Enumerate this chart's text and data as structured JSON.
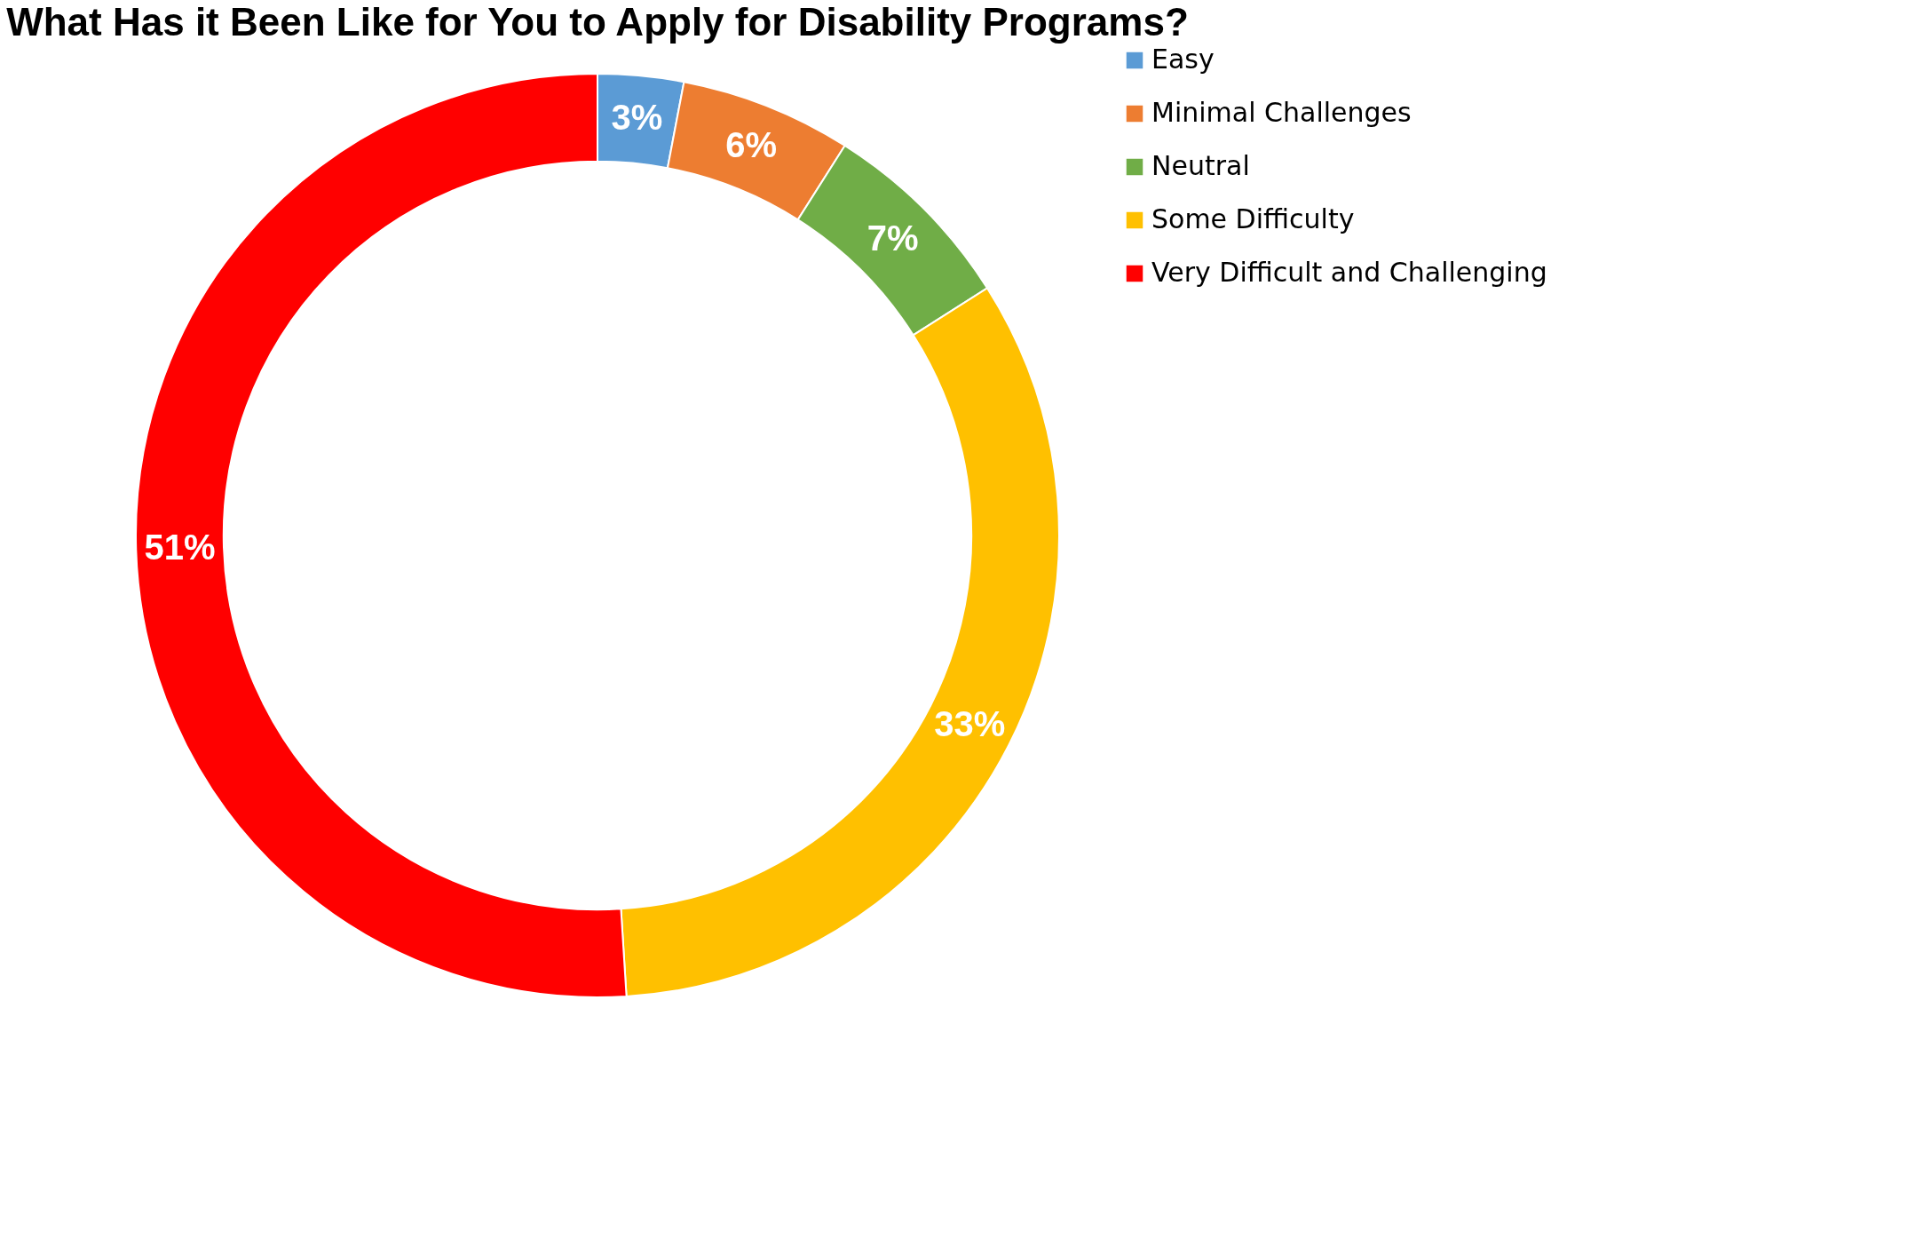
{
  "chart_data": {
    "type": "donut",
    "title": "What Has it Been Like for You to Apply for Disability Programs?",
    "categories": [
      "Easy",
      "Minimal Challenges",
      "Neutral",
      "Some Difficulty",
      "Very Difficult and Challenging"
    ],
    "values": [
      3,
      6,
      7,
      33,
      51
    ],
    "colors": [
      "#5b9bd5",
      "#ed7d31",
      "#70ad47",
      "#ffc000",
      "#ff0000"
    ],
    "value_labels": [
      "3%",
      "6%",
      "7%",
      "33%",
      "51%"
    ],
    "legend": "right"
  }
}
